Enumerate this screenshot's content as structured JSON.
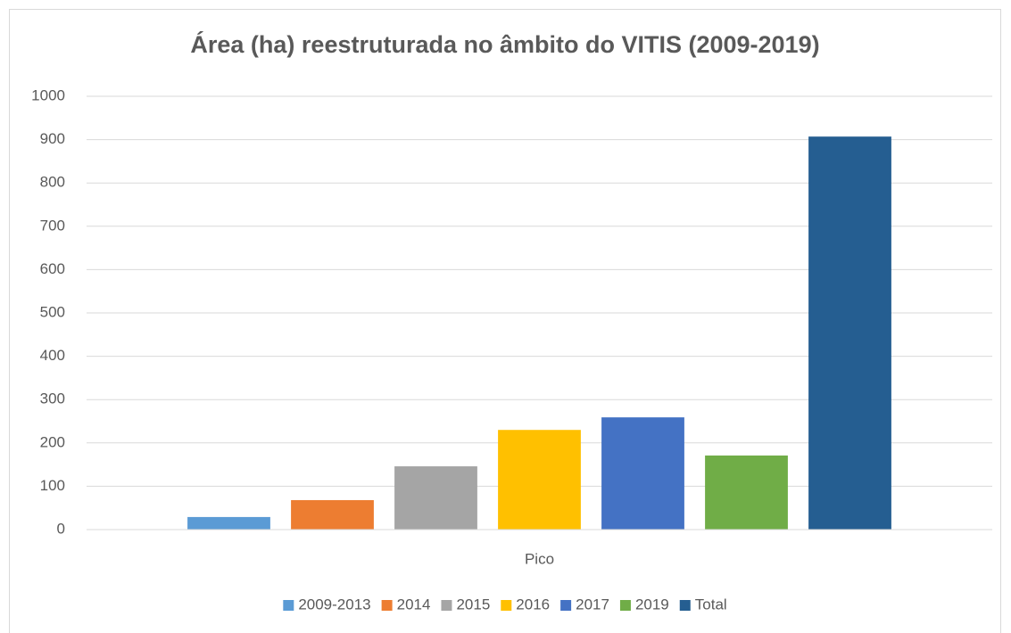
{
  "chart_data": {
    "type": "bar",
    "title": "Área (ha) reestruturada no âmbito do VITIS (2009-2019)",
    "categories": [
      "Pico"
    ],
    "series": [
      {
        "name": "2009-2013",
        "color": "#5b9bd5",
        "values": [
          29
        ]
      },
      {
        "name": "2014",
        "color": "#ed7d31",
        "values": [
          68
        ]
      },
      {
        "name": "2015",
        "color": "#a5a5a5",
        "values": [
          146
        ]
      },
      {
        "name": "2016",
        "color": "#ffc000",
        "values": [
          230
        ]
      },
      {
        "name": "2017",
        "color": "#4472c4",
        "values": [
          259
        ]
      },
      {
        "name": "2019",
        "color": "#70ad47",
        "values": [
          171
        ]
      },
      {
        "name": "Total",
        "color": "#255e91",
        "values": [
          907
        ]
      }
    ],
    "ylim": [
      0,
      1000
    ],
    "yticks": [
      0,
      100,
      200,
      300,
      400,
      500,
      600,
      700,
      800,
      900,
      1000
    ],
    "grid": true,
    "legend": "bottom"
  }
}
